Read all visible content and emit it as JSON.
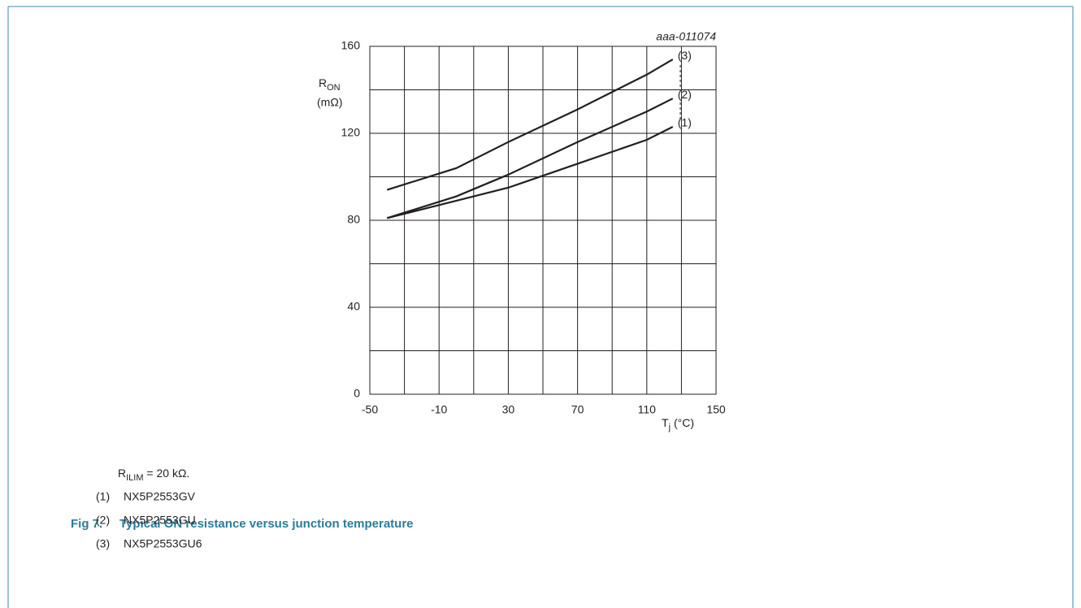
{
  "chart_data": {
    "type": "line",
    "annotation": "aaa-011074",
    "y_label": {
      "main": "R",
      "sub": "ON",
      "unit": "(mΩ)"
    },
    "x_label": {
      "main": "T",
      "sub": "j",
      "unit": "(°C)"
    },
    "xlim": [
      -50,
      150
    ],
    "ylim": [
      0,
      160
    ],
    "xticks": [
      -50,
      -10,
      30,
      70,
      110,
      150
    ],
    "yticks": [
      0,
      40,
      80,
      120,
      160
    ],
    "xminorticks": [
      -30,
      10,
      50,
      90,
      130
    ],
    "yminorticks": [
      20,
      60,
      100,
      140
    ],
    "grid": true,
    "series": [
      {
        "name": "NX5P2553GV",
        "label": "(1)",
        "color": "#231f20",
        "x": [
          -40,
          0,
          30,
          70,
          110,
          125
        ],
        "values": [
          81,
          89,
          95,
          106,
          117,
          123
        ]
      },
      {
        "name": "NX5P2553GU",
        "label": "(2)",
        "color": "#231f20",
        "x": [
          -40,
          0,
          30,
          70,
          110,
          125
        ],
        "values": [
          81,
          91,
          101,
          116,
          130,
          136
        ]
      },
      {
        "name": "NX5P2553GU6",
        "label": "(3)",
        "color": "#231f20",
        "x": [
          -40,
          0,
          30,
          70,
          110,
          125
        ],
        "values": [
          94,
          104,
          116,
          131,
          147,
          154
        ]
      }
    ],
    "condition": {
      "main": "R",
      "sub": "ILIM",
      "rest": " = 20 kΩ."
    },
    "figure": {
      "number": "Fig 7.",
      "title": "Typical ON resistance versus junction temperature"
    }
  }
}
